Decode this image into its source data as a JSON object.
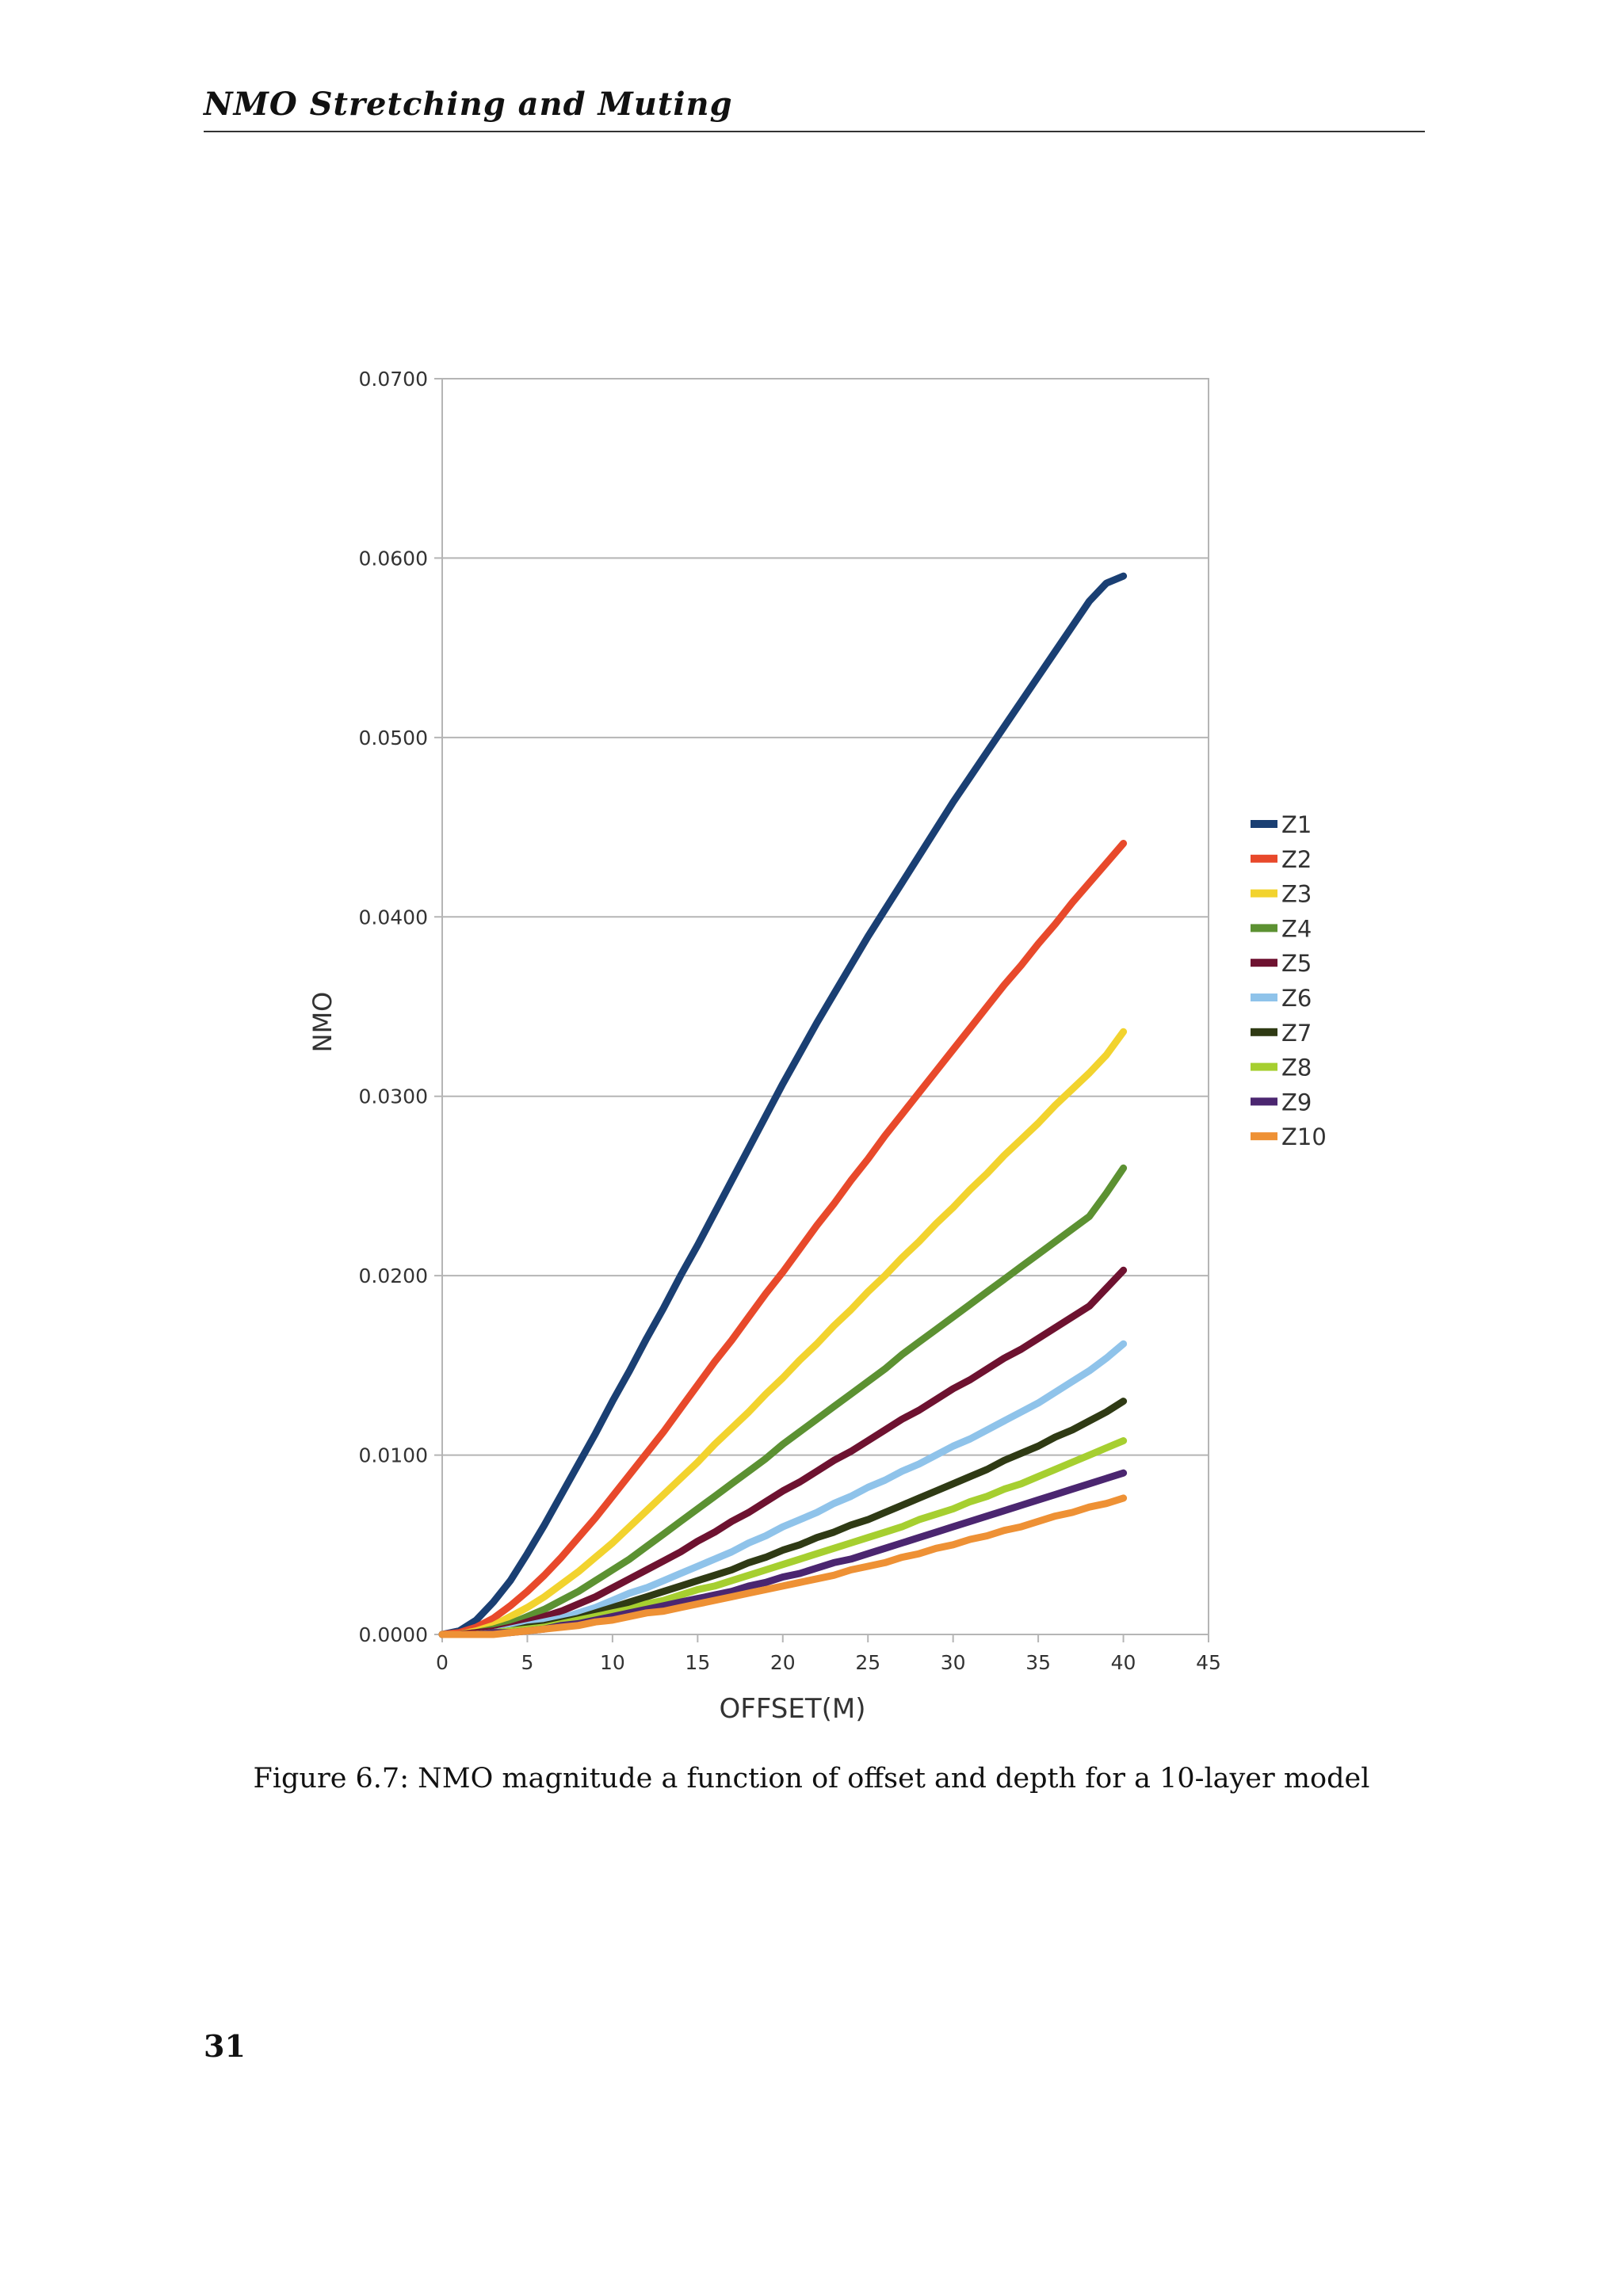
{
  "page": {
    "header": "NMO Stretching and Muting",
    "caption": "Figure 6.7: NMO magnitude a function of offset and depth for a 10-layer model",
    "page_number": "31"
  },
  "chart_data": {
    "type": "line",
    "title": "",
    "xlabel": "OFFSET(M)",
    "ylabel": "NMO",
    "xlim": [
      0,
      45
    ],
    "ylim": [
      0,
      0.07
    ],
    "x_ticks": [
      0,
      5,
      10,
      15,
      20,
      25,
      30,
      35,
      40,
      45
    ],
    "x_tick_labels": [
      "0",
      "5",
      "10",
      "15",
      "20",
      "25",
      "30",
      "35",
      "40",
      "45"
    ],
    "y_ticks": [
      0,
      0.01,
      0.02,
      0.03,
      0.04,
      0.05,
      0.06,
      0.07
    ],
    "y_tick_labels": [
      "0.0000",
      "0.0100",
      "0.0200",
      "0.0300",
      "0.0400",
      "0.0500",
      "0.0600",
      "0.0700"
    ],
    "grid": true,
    "legend_position": "right",
    "x": [
      0,
      1,
      2,
      3,
      4,
      5,
      6,
      7,
      8,
      9,
      10,
      11,
      12,
      13,
      14,
      15,
      16,
      17,
      18,
      19,
      20,
      21,
      22,
      23,
      24,
      25,
      26,
      27,
      28,
      29,
      30,
      31,
      32,
      33,
      34,
      35,
      36,
      37,
      38,
      39,
      40
    ],
    "series": [
      {
        "name": "Z1",
        "color": "#1a3f73",
        "values": [
          0.0,
          0.0002,
          0.0008,
          0.0018,
          0.003,
          0.0045,
          0.0061,
          0.0078,
          0.0095,
          0.0112,
          0.013,
          0.0147,
          0.0165,
          0.0182,
          0.02,
          0.0217,
          0.0235,
          0.0253,
          0.0271,
          0.0289,
          0.0307,
          0.0324,
          0.0341,
          0.0357,
          0.0373,
          0.0389,
          0.0404,
          0.0419,
          0.0434,
          0.0449,
          0.0464,
          0.0478,
          0.0492,
          0.0506,
          0.052,
          0.0534,
          0.0548,
          0.0562,
          0.0576,
          0.0586,
          0.059
        ]
      },
      {
        "name": "Z2",
        "color": "#e8492b",
        "values": [
          0.0,
          0.0001,
          0.0004,
          0.0009,
          0.0016,
          0.0024,
          0.0033,
          0.0043,
          0.0054,
          0.0065,
          0.0077,
          0.0089,
          0.0101,
          0.0113,
          0.0126,
          0.0139,
          0.0152,
          0.0164,
          0.0177,
          0.019,
          0.0202,
          0.0215,
          0.0228,
          0.024,
          0.0253,
          0.0265,
          0.0278,
          0.029,
          0.0302,
          0.0314,
          0.0326,
          0.0338,
          0.035,
          0.0362,
          0.0373,
          0.0385,
          0.0396,
          0.0408,
          0.0419,
          0.043,
          0.0441
        ]
      },
      {
        "name": "Z3",
        "color": "#f2d32e",
        "values": [
          0.0,
          0.0,
          0.0002,
          0.0005,
          0.001,
          0.0015,
          0.0021,
          0.0028,
          0.0035,
          0.0043,
          0.0051,
          0.006,
          0.0069,
          0.0078,
          0.0087,
          0.0096,
          0.0106,
          0.0115,
          0.0124,
          0.0134,
          0.0143,
          0.0153,
          0.0162,
          0.0172,
          0.0181,
          0.0191,
          0.02,
          0.021,
          0.0219,
          0.0229,
          0.0238,
          0.0248,
          0.0257,
          0.0267,
          0.0276,
          0.0285,
          0.0295,
          0.0304,
          0.0313,
          0.0323,
          0.0336
        ]
      },
      {
        "name": "Z4",
        "color": "#5c9132",
        "values": [
          0.0,
          0.0,
          0.0001,
          0.0003,
          0.0006,
          0.001,
          0.0014,
          0.0019,
          0.0024,
          0.003,
          0.0036,
          0.0042,
          0.0049,
          0.0056,
          0.0063,
          0.007,
          0.0077,
          0.0084,
          0.0091,
          0.0098,
          0.0106,
          0.0113,
          0.012,
          0.0127,
          0.0134,
          0.0141,
          0.0148,
          0.0156,
          0.0163,
          0.017,
          0.0177,
          0.0184,
          0.0191,
          0.0198,
          0.0205,
          0.0212,
          0.0219,
          0.0226,
          0.0233,
          0.0246,
          0.026
        ]
      },
      {
        "name": "Z5",
        "color": "#6e1230",
        "values": [
          0.0,
          0.0,
          0.0001,
          0.0002,
          0.0004,
          0.0007,
          0.001,
          0.0013,
          0.0017,
          0.0021,
          0.0026,
          0.0031,
          0.0036,
          0.0041,
          0.0046,
          0.0052,
          0.0057,
          0.0063,
          0.0068,
          0.0074,
          0.008,
          0.0085,
          0.0091,
          0.0097,
          0.0102,
          0.0108,
          0.0114,
          0.012,
          0.0125,
          0.0131,
          0.0137,
          0.0142,
          0.0148,
          0.0154,
          0.0159,
          0.0165,
          0.0171,
          0.0177,
          0.0183,
          0.0193,
          0.0203
        ]
      },
      {
        "name": "Z6",
        "color": "#8fc3ea",
        "values": [
          0.0,
          0.0,
          0.0,
          0.0001,
          0.0003,
          0.0005,
          0.0007,
          0.0009,
          0.0012,
          0.0015,
          0.0019,
          0.0023,
          0.0026,
          0.003,
          0.0034,
          0.0038,
          0.0042,
          0.0046,
          0.0051,
          0.0055,
          0.006,
          0.0064,
          0.0068,
          0.0073,
          0.0077,
          0.0082,
          0.0086,
          0.0091,
          0.0095,
          0.01,
          0.0105,
          0.0109,
          0.0114,
          0.0119,
          0.0124,
          0.0129,
          0.0135,
          0.0141,
          0.0147,
          0.0154,
          0.0162
        ]
      },
      {
        "name": "Z7",
        "color": "#2f3a14",
        "values": [
          0.0,
          0.0,
          0.0,
          0.0001,
          0.0002,
          0.0004,
          0.0005,
          0.0007,
          0.0009,
          0.0012,
          0.0015,
          0.0018,
          0.0021,
          0.0024,
          0.0027,
          0.003,
          0.0033,
          0.0036,
          0.004,
          0.0043,
          0.0047,
          0.005,
          0.0054,
          0.0057,
          0.0061,
          0.0064,
          0.0068,
          0.0072,
          0.0076,
          0.008,
          0.0084,
          0.0088,
          0.0092,
          0.0097,
          0.0101,
          0.0105,
          0.011,
          0.0114,
          0.0119,
          0.0124,
          0.013
        ]
      },
      {
        "name": "Z8",
        "color": "#a6cf30",
        "values": [
          0.0,
          0.0,
          0.0,
          0.0001,
          0.0002,
          0.0003,
          0.0004,
          0.0006,
          0.0008,
          0.001,
          0.0012,
          0.0014,
          0.0017,
          0.0019,
          0.0022,
          0.0025,
          0.0027,
          0.003,
          0.0033,
          0.0036,
          0.0039,
          0.0042,
          0.0045,
          0.0048,
          0.0051,
          0.0054,
          0.0057,
          0.006,
          0.0064,
          0.0067,
          0.007,
          0.0074,
          0.0077,
          0.0081,
          0.0084,
          0.0088,
          0.0092,
          0.0096,
          0.01,
          0.0104,
          0.0108
        ]
      },
      {
        "name": "Z9",
        "color": "#4b2670",
        "values": [
          0.0,
          0.0,
          0.0,
          0.0001,
          0.0001,
          0.0002,
          0.0003,
          0.0005,
          0.0006,
          0.0008,
          0.001,
          0.0012,
          0.0014,
          0.0016,
          0.0018,
          0.002,
          0.0022,
          0.0024,
          0.0027,
          0.0029,
          0.0032,
          0.0034,
          0.0037,
          0.004,
          0.0042,
          0.0045,
          0.0048,
          0.0051,
          0.0054,
          0.0057,
          0.006,
          0.0063,
          0.0066,
          0.0069,
          0.0072,
          0.0075,
          0.0078,
          0.0081,
          0.0084,
          0.0087,
          0.009
        ]
      },
      {
        "name": "Z10",
        "color": "#ee9135",
        "values": [
          0.0,
          0.0,
          0.0,
          0.0,
          0.0001,
          0.0002,
          0.0003,
          0.0004,
          0.0005,
          0.0007,
          0.0008,
          0.001,
          0.0012,
          0.0013,
          0.0015,
          0.0017,
          0.0019,
          0.0021,
          0.0023,
          0.0025,
          0.0027,
          0.0029,
          0.0031,
          0.0033,
          0.0036,
          0.0038,
          0.004,
          0.0043,
          0.0045,
          0.0048,
          0.005,
          0.0053,
          0.0055,
          0.0058,
          0.006,
          0.0063,
          0.0066,
          0.0068,
          0.0071,
          0.0073,
          0.0076
        ]
      }
    ]
  }
}
